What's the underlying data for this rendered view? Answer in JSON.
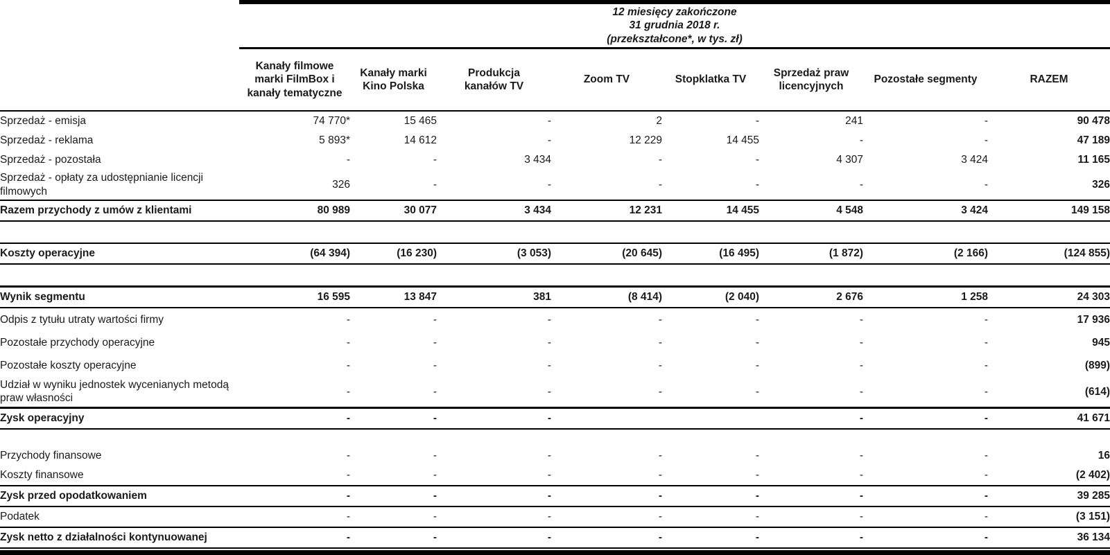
{
  "table": {
    "period_header": {
      "line1": "12 miesięcy zakończone",
      "line2": "31 grudnia 2018 r.",
      "line3": "(przekształcone*, w tys. zł)"
    },
    "columns": [
      {
        "lines": [
          "Kanały filmowe",
          "marki FilmBox i",
          "kanały tematyczne"
        ]
      },
      {
        "lines": [
          "Kanały marki",
          "Kino Polska"
        ]
      },
      {
        "lines": [
          "Produkcja",
          "kanałów TV"
        ]
      },
      {
        "lines": [
          "Zoom TV"
        ]
      },
      {
        "lines": [
          "Stopklatka TV"
        ]
      },
      {
        "lines": [
          "Sprzedaż praw",
          "licencyjnych"
        ]
      },
      {
        "lines": [
          "Pozostałe segmenty"
        ]
      },
      {
        "lines": [
          "RAZEM"
        ]
      }
    ],
    "rows": [
      {
        "label": "Sprzedaż - emisja",
        "values": [
          "74 770*",
          "15 465",
          "-",
          "2",
          "-",
          "241",
          "-",
          "90 478"
        ]
      },
      {
        "label": "Sprzedaż - reklama",
        "values": [
          "5 893*",
          "14 612",
          "-",
          "12 229",
          "14 455",
          "-",
          "-",
          "47 189"
        ]
      },
      {
        "label": "Sprzedaż - pozostała",
        "values": [
          "-",
          "-",
          "3 434",
          "-",
          "-",
          "4 307",
          "3 424",
          "11 165"
        ]
      },
      {
        "label": "Sprzedaż - opłaty za udostępnianie licencji filmowych",
        "values": [
          "326",
          "-",
          "-",
          "-",
          "-",
          "-",
          "-",
          "326"
        ]
      },
      {
        "label": "Razem przychody z umów z klientami",
        "bold": true,
        "top_rule": "thin",
        "bottom_rule": "thin",
        "values": [
          "80 989",
          "30 077",
          "3 434",
          "12 231",
          "14 455",
          "4 548",
          "3 424",
          "149 158"
        ]
      },
      {
        "spacer": true
      },
      {
        "label": "Koszty operacyjne",
        "bold": true,
        "top_rule": "thin",
        "bottom_rule": "thin",
        "values": [
          "(64 394)",
          "(16 230)",
          "(3 053)",
          "(20 645)",
          "(16 495)",
          "(1 872)",
          "(2 166)",
          "(124 855)"
        ]
      },
      {
        "spacer": true
      },
      {
        "label": "Wynik segmentu",
        "bold": true,
        "top_rule": "thick",
        "bottom_rule": "thin",
        "values": [
          "16 595",
          "13 847",
          "381",
          "(8 414)",
          "(2 040)",
          "2 676",
          "1 258",
          "24 303"
        ]
      },
      {
        "label": "Odpis z tytułu utraty wartości firmy",
        "tall": true,
        "values": [
          "-",
          "-",
          "-",
          "-",
          "-",
          "-",
          "-",
          "17 936"
        ]
      },
      {
        "label": "Pozostałe przychody operacyjne",
        "tall": true,
        "values": [
          "-",
          "-",
          "-",
          "-",
          "-",
          "-",
          "-",
          "945"
        ]
      },
      {
        "label": "Pozostałe koszty operacyjne",
        "tall": true,
        "values": [
          "-",
          "-",
          "-",
          "-",
          "-",
          "-",
          "-",
          "(899)"
        ]
      },
      {
        "label": "Udział w wyniku jednostek wycenianych metodą praw własności",
        "tall": true,
        "values": [
          "-",
          "-",
          "-",
          "-",
          "-",
          "-",
          "-",
          "(614)"
        ]
      },
      {
        "label": "Zysk operacyjny",
        "bold": true,
        "top_rule": "thick",
        "bottom_rule": "thin",
        "values": [
          "-",
          "-",
          "-",
          "",
          "",
          "-",
          "-",
          "41 671"
        ]
      },
      {
        "spacer": true,
        "small": true
      },
      {
        "label": "Przychody finansowe",
        "values": [
          "-",
          "-",
          "-",
          "-",
          "-",
          "-",
          "-",
          "16"
        ]
      },
      {
        "label": "Koszty finansowe",
        "values": [
          "-",
          "-",
          "-",
          "-",
          "-",
          "-",
          "-",
          "(2 402)"
        ]
      },
      {
        "label": "Zysk przed opodatkowaniem",
        "bold": true,
        "top_rule": "thin",
        "bottom_rule": "thin",
        "values": [
          "-",
          "-",
          "-",
          "-",
          "-",
          "-",
          "-",
          "39 285"
        ]
      },
      {
        "label": "Podatek",
        "bottom_rule": "thin",
        "values": [
          "-",
          "-",
          "-",
          "-",
          "-",
          "-",
          "-",
          "(3 151)"
        ]
      },
      {
        "label": "Zysk netto z działalności kontynuowanej",
        "bold": true,
        "bottom_rule": "thin",
        "values": [
          "-",
          "-",
          "-",
          "-",
          "-",
          "-",
          "-",
          "36 134"
        ]
      }
    ]
  }
}
